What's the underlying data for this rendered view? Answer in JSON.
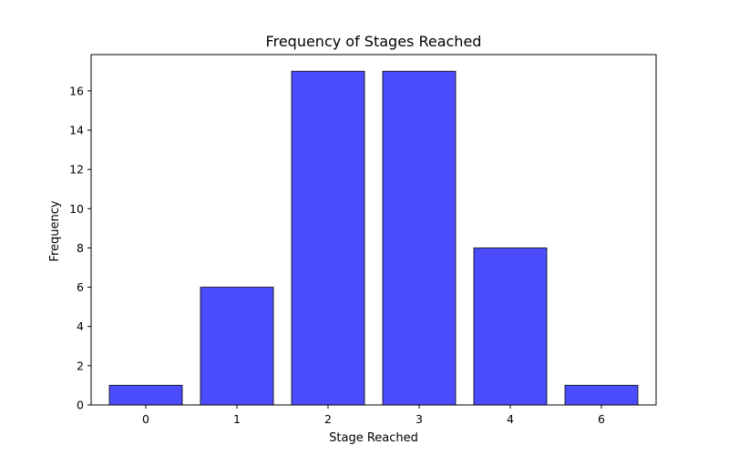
{
  "chart_data": {
    "type": "bar",
    "title": "Frequency of Stages Reached",
    "xlabel": "Stage Reached",
    "ylabel": "Frequency",
    "categories": [
      "0",
      "1",
      "2",
      "3",
      "4",
      "6"
    ],
    "values": [
      1,
      6,
      17,
      17,
      8,
      1
    ],
    "ylim": [
      0,
      17.85
    ],
    "yticks": [
      0,
      2,
      4,
      6,
      8,
      10,
      12,
      14,
      16
    ],
    "grid": false,
    "legend": "none",
    "colors": {
      "bar_fill": "#0000ff",
      "bar_opacity": 0.7,
      "bar_edge": "#000000"
    }
  }
}
